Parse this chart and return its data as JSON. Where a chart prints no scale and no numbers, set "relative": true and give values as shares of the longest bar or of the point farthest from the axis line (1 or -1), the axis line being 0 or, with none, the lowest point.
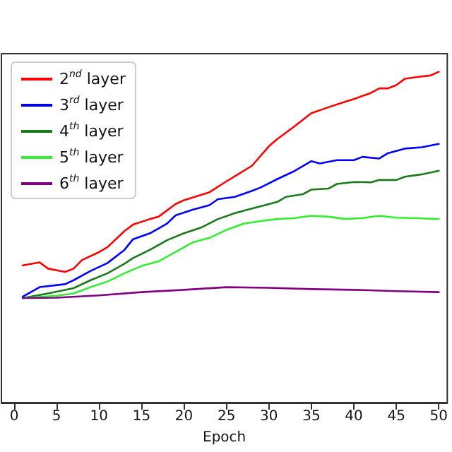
{
  "chart_data": {
    "type": "line",
    "relative": true,
    "xlabel": "Epoch",
    "xlim": [
      -1.5,
      51
    ],
    "xticks": [
      0,
      5,
      10,
      15,
      20,
      25,
      30,
      35,
      40,
      45,
      50
    ],
    "legend": "top left",
    "grid": false,
    "marker": "none",
    "line_style": "solid",
    "series": [
      {
        "name": "2$^{nd}$ layer",
        "color": "#ff0000",
        "x": [
          1,
          3,
          4,
          6,
          7,
          8,
          10,
          11,
          13,
          14,
          16,
          17,
          19,
          20,
          23,
          25,
          27,
          28,
          30,
          31,
          33,
          35,
          37,
          39,
          40,
          42,
          43,
          44,
          45,
          46,
          48,
          49,
          50
        ],
        "values": [
          0.415,
          0.424,
          0.405,
          0.395,
          0.405,
          0.431,
          0.455,
          0.47,
          0.519,
          0.538,
          0.555,
          0.562,
          0.6,
          0.612,
          0.636,
          0.669,
          0.7,
          0.716,
          0.775,
          0.797,
          0.835,
          0.875,
          0.893,
          0.91,
          0.918,
          0.936,
          0.95,
          0.95,
          0.96,
          0.979,
          0.986,
          0.989,
          1
        ]
      },
      {
        "name": "3$^{rd}$ layer",
        "color": "#0000ff",
        "x": [
          1,
          3,
          6,
          7,
          9,
          11,
          13,
          14,
          16,
          18,
          19,
          21,
          23,
          24,
          26,
          28,
          29,
          31,
          33,
          35,
          36,
          38,
          40,
          41,
          43,
          44,
          46,
          48,
          50
        ],
        "values": [
          0.32,
          0.349,
          0.358,
          0.37,
          0.398,
          0.422,
          0.462,
          0.494,
          0.512,
          0.541,
          0.566,
          0.583,
          0.597,
          0.615,
          0.622,
          0.64,
          0.65,
          0.676,
          0.7,
          0.73,
          0.723,
          0.733,
          0.733,
          0.743,
          0.738,
          0.754,
          0.768,
          0.772,
          0.782
        ]
      },
      {
        "name": "4$^{th}$ layer",
        "color": "#1a7a1a",
        "x": [
          1,
          4,
          7,
          9,
          11,
          13,
          14,
          16,
          18,
          20,
          22,
          24,
          26,
          28,
          30,
          31,
          32,
          34,
          35,
          37,
          38,
          40,
          42,
          43,
          45,
          46,
          48,
          50
        ],
        "values": [
          0.316,
          0.33,
          0.346,
          0.37,
          0.391,
          0.42,
          0.437,
          0.462,
          0.491,
          0.512,
          0.529,
          0.555,
          0.573,
          0.587,
          0.6,
          0.607,
          0.622,
          0.63,
          0.644,
          0.647,
          0.661,
          0.667,
          0.666,
          0.673,
          0.673,
          0.683,
          0.69,
          0.701
        ]
      },
      {
        "name": "5$^{th}$ layer",
        "color": "#33ee33",
        "x": [
          1,
          5,
          7,
          9,
          11,
          13,
          15,
          17,
          19,
          21,
          23,
          25,
          27,
          29,
          31,
          33,
          35,
          37,
          39,
          41,
          43,
          45,
          47,
          50
        ],
        "values": [
          0.316,
          0.323,
          0.33,
          0.349,
          0.366,
          0.391,
          0.413,
          0.427,
          0.455,
          0.484,
          0.498,
          0.522,
          0.541,
          0.549,
          0.555,
          0.558,
          0.565,
          0.562,
          0.555,
          0.558,
          0.565,
          0.559,
          0.558,
          0.555
        ]
      },
      {
        "name": "6$^{th}$ layer",
        "color": "#800080",
        "x": [
          1,
          5,
          10,
          15,
          20,
          25,
          30,
          35,
          40,
          45,
          50
        ],
        "values": [
          0.316,
          0.317,
          0.324,
          0.334,
          0.341,
          0.349,
          0.347,
          0.343,
          0.341,
          0.337,
          0.334
        ]
      }
    ]
  }
}
